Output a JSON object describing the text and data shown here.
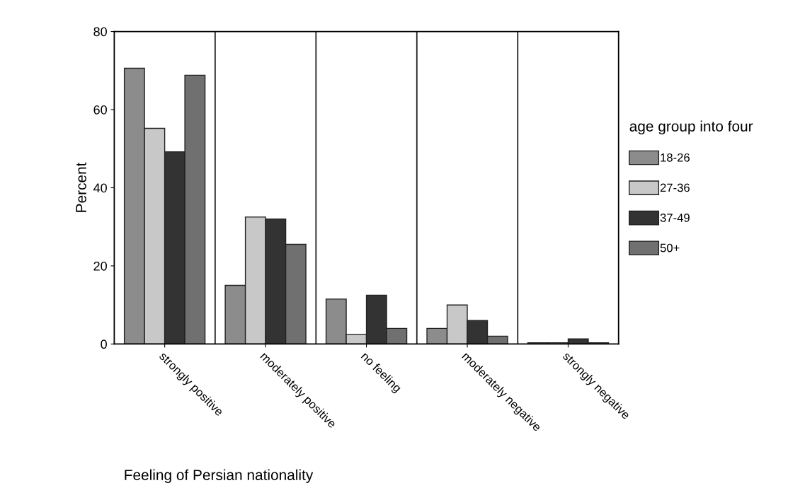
{
  "chart_data": {
    "type": "bar",
    "xlabel": "Feeling of Persian nationality",
    "ylabel": "Percent",
    "legend_title": "age group into four",
    "categories": [
      "strongly positive",
      "moderately positive",
      "no feeling",
      "moderately negative",
      "strongly negative"
    ],
    "series": [
      {
        "name": "18-26",
        "color": "#8c8c8c",
        "values": [
          70.6,
          15,
          11.5,
          4,
          0.3
        ]
      },
      {
        "name": "27-36",
        "color": "#c8c8c8",
        "values": [
          55.2,
          32.5,
          2.5,
          10,
          0.3
        ]
      },
      {
        "name": "37-49",
        "color": "#333333",
        "values": [
          49.2,
          32,
          12.5,
          6,
          1.3
        ]
      },
      {
        "name": "50+",
        "color": "#707070",
        "values": [
          68.8,
          25.5,
          4,
          2,
          0.3
        ]
      }
    ],
    "ylim": [
      0,
      80
    ],
    "yticks": [
      0,
      20,
      40,
      60,
      80
    ],
    "grid": "x",
    "legend": "right"
  }
}
